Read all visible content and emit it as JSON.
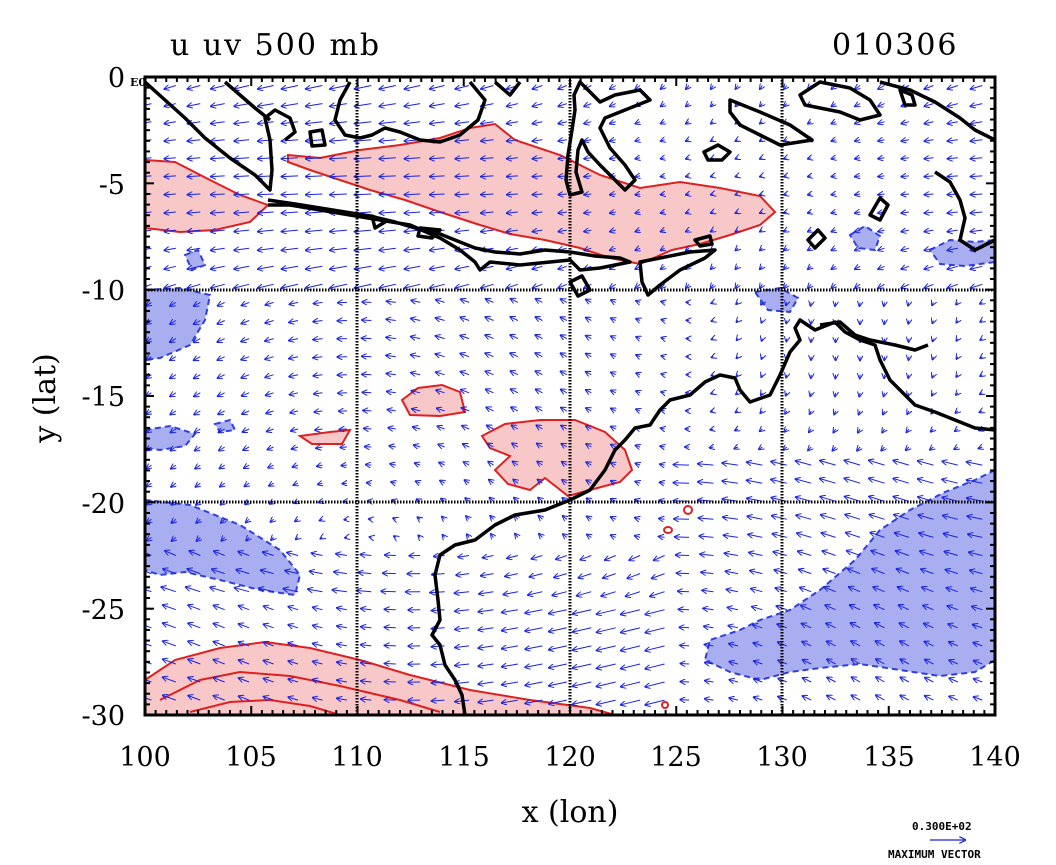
{
  "header": {
    "title": "u uv 500 mb",
    "date": "010306",
    "exponent": "E0"
  },
  "chart_data": {
    "type": "contour+vector",
    "x": {
      "label": "x (lon)",
      "range": [
        100,
        140
      ],
      "ticks": [
        100,
        105,
        110,
        115,
        120,
        125,
        130,
        135,
        140
      ]
    },
    "y": {
      "label": "y (lat)",
      "range": [
        -30,
        0
      ],
      "ticks": [
        0,
        -5,
        -10,
        -15,
        -20,
        -25,
        -30
      ]
    },
    "gridlines": {
      "lon": [
        110,
        120,
        130
      ],
      "lat": [
        -10,
        -20
      ]
    },
    "colors": {
      "positive_fill": "#f8c8c8",
      "positive_line": "#e02020",
      "negative_fill": "#a9aef0",
      "negative_line": "#3040e0",
      "vector": "#1a22e0",
      "coast": "#000000"
    },
    "max_vector_value": "0.300E+02",
    "max_vector_label": "MAXIMUM VECTOR"
  }
}
